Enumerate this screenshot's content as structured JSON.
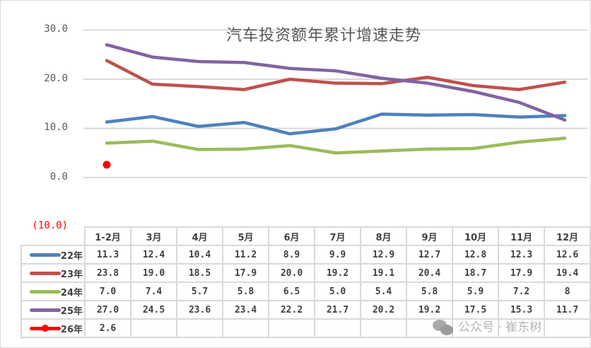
{
  "chart_data": {
    "type": "line",
    "title": "汽车投资额年累计增速走势",
    "xlabel": "",
    "ylabel": "",
    "ylim": [
      -10,
      30
    ],
    "yticks": [
      "30.0",
      "20.0",
      "10.0",
      "0.0",
      "(10.0)"
    ],
    "grid": true,
    "legend_position": "data-table",
    "categories": [
      "1-2月",
      "3月",
      "4月",
      "5月",
      "6月",
      "7月",
      "8月",
      "9月",
      "10月",
      "11月",
      "12月"
    ],
    "series": [
      {
        "name": "22年",
        "color": "#4f81bd",
        "values": [
          11.3,
          12.4,
          10.4,
          11.2,
          8.9,
          9.9,
          12.9,
          12.7,
          12.8,
          12.3,
          12.6
        ],
        "labels": [
          "11.3",
          "12.4",
          "10.4",
          "11.2",
          "8.9",
          "9.9",
          "12.9",
          "12.7",
          "12.8",
          "12.3",
          "12.6"
        ]
      },
      {
        "name": "23年",
        "color": "#c0504d",
        "values": [
          23.8,
          19.0,
          18.5,
          17.9,
          20.0,
          19.2,
          19.1,
          20.4,
          18.7,
          17.9,
          19.4
        ],
        "labels": [
          "23.8",
          "19.0",
          "18.5",
          "17.9",
          "20.0",
          "19.2",
          "19.1",
          "20.4",
          "18.7",
          "17.9",
          "19.4"
        ]
      },
      {
        "name": "24年",
        "color": "#9bbb59",
        "values": [
          7.0,
          7.4,
          5.7,
          5.8,
          6.5,
          5.0,
          5.4,
          5.8,
          5.9,
          7.2,
          8
        ],
        "labels": [
          "7.0",
          "7.4",
          "5.7",
          "5.8",
          "6.5",
          "5.0",
          "5.4",
          "5.8",
          "5.9",
          "7.2",
          "8"
        ]
      },
      {
        "name": "25年",
        "color": "#8064a2",
        "values": [
          27.0,
          24.5,
          23.6,
          23.4,
          22.2,
          21.7,
          20.2,
          19.2,
          17.5,
          15.3,
          11.7
        ],
        "labels": [
          "27.0",
          "24.5",
          "23.6",
          "23.4",
          "22.2",
          "21.7",
          "20.2",
          "19.2",
          "17.5",
          "15.3",
          "11.7"
        ]
      },
      {
        "name": "26年",
        "color": "#ff0000",
        "marker": "circle",
        "values": [
          2.6
        ],
        "labels": [
          "2.6",
          "",
          "",
          "",
          "",
          "",
          "",
          "",
          "",
          "",
          ""
        ]
      }
    ]
  },
  "watermark": {
    "icon": "wechat-icon",
    "text": "公众号 · 崔东树"
  }
}
